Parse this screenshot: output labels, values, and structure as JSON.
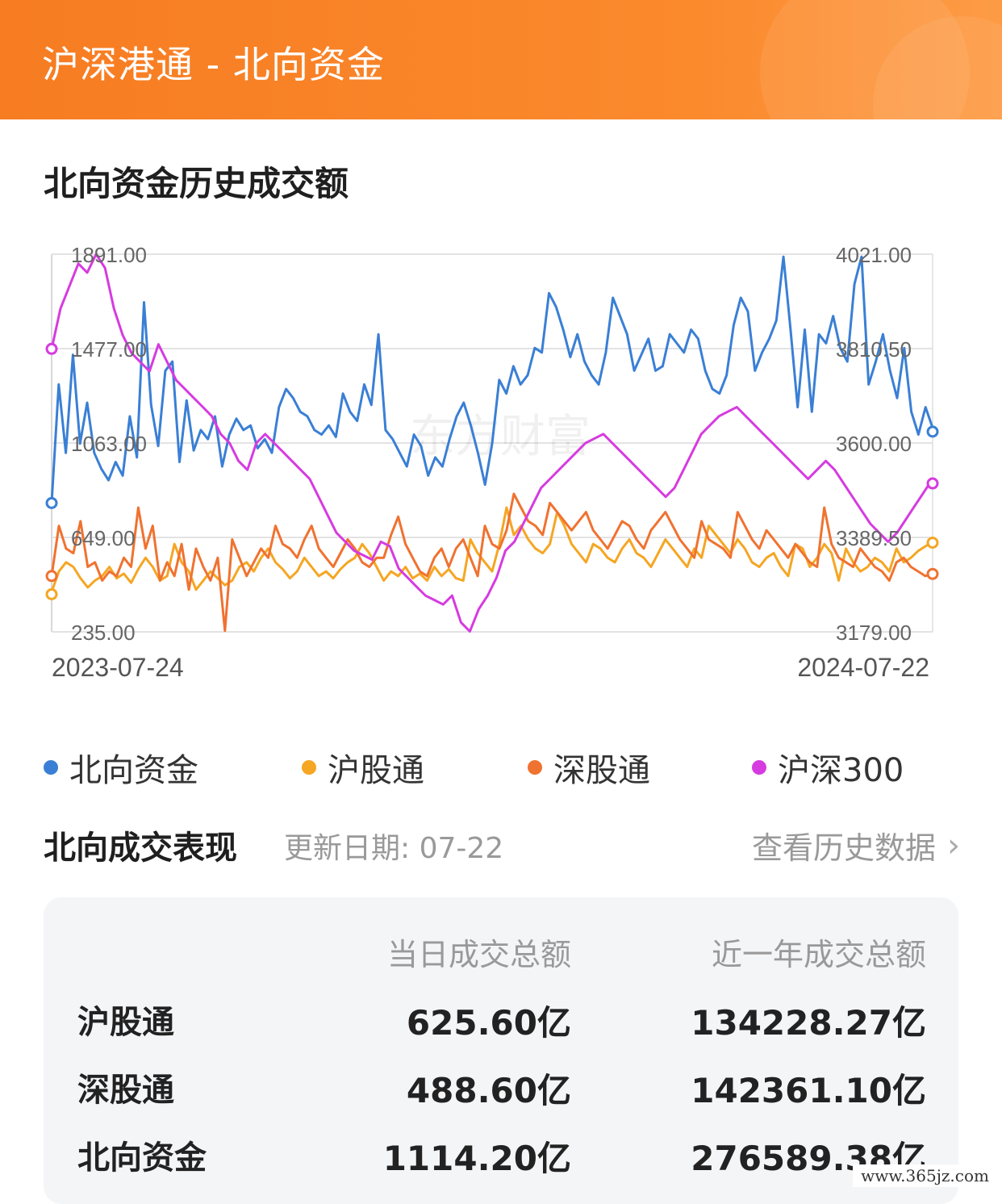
{
  "header": {
    "title": "沪深港通 - 北向资金"
  },
  "chart_section": {
    "title": "北向资金历史成交额"
  },
  "chart_data": {
    "type": "line",
    "title": "北向资金历史成交额",
    "x_start": "2023-07-24",
    "x_end": "2024-07-22",
    "left_axis": {
      "ticks": [
        "1891.00",
        "1477.00",
        "1063.00",
        "649.00",
        "235.00"
      ],
      "ylim": [
        235,
        1891
      ]
    },
    "right_axis": {
      "ticks": [
        "4021.00",
        "3810.50",
        "3600.00",
        "3389.50",
        "3179.00"
      ],
      "ylim": [
        3179,
        4021
      ]
    },
    "grid": true,
    "legend_position": "bottom",
    "watermark": "东方财富",
    "series": [
      {
        "name": "北向资金",
        "color": "#3a7fd5",
        "axis": "left",
        "values": [
          800,
          1320,
          1020,
          1450,
          1060,
          1240,
          1020,
          950,
          900,
          980,
          920,
          1180,
          1000,
          1680,
          1230,
          1050,
          1380,
          1420,
          980,
          1250,
          1030,
          1120,
          1080,
          1180,
          960,
          1100,
          1170,
          1120,
          1140,
          1040,
          1080,
          1020,
          1220,
          1300,
          1260,
          1200,
          1180,
          1120,
          1100,
          1140,
          1090,
          1280,
          1200,
          1160,
          1320,
          1230,
          1540,
          1120,
          1080,
          1020,
          960,
          1100,
          1050,
          920,
          1000,
          960,
          1080,
          1180,
          1240,
          1140,
          1020,
          880,
          1060,
          1340,
          1280,
          1400,
          1320,
          1360,
          1480,
          1460,
          1720,
          1660,
          1560,
          1440,
          1540,
          1420,
          1360,
          1320,
          1460,
          1700,
          1620,
          1540,
          1380,
          1450,
          1520,
          1380,
          1400,
          1540,
          1500,
          1460,
          1560,
          1520,
          1380,
          1300,
          1280,
          1360,
          1580,
          1700,
          1640,
          1380,
          1460,
          1520,
          1600,
          1880,
          1560,
          1220,
          1560,
          1200,
          1540,
          1500,
          1620,
          1480,
          1420,
          1760,
          1880,
          1320,
          1420,
          1540,
          1380,
          1260,
          1480,
          1200,
          1100,
          1220,
          1130
        ],
        "start_marker": 800,
        "end_marker": 1113
      },
      {
        "name": "沪股通",
        "color": "#f5a623",
        "axis": "left",
        "values": [
          410,
          500,
          540,
          520,
          470,
          430,
          460,
          480,
          520,
          470,
          490,
          450,
          510,
          560,
          520,
          460,
          480,
          620,
          540,
          500,
          420,
          460,
          500,
          470,
          440,
          460,
          520,
          540,
          500,
          560,
          600,
          540,
          510,
          470,
          500,
          560,
          520,
          480,
          500,
          470,
          510,
          540,
          560,
          620,
          580,
          520,
          460,
          500,
          480,
          520,
          470,
          490,
          460,
          520,
          480,
          510,
          470,
          460,
          640,
          580,
          540,
          500,
          620,
          780,
          660,
          700,
          640,
          600,
          580,
          620,
          760,
          700,
          620,
          580,
          540,
          620,
          600,
          560,
          540,
          600,
          640,
          580,
          560,
          520,
          580,
          640,
          600,
          560,
          520,
          600,
          560,
          700,
          660,
          620,
          580,
          640,
          600,
          540,
          520,
          560,
          580,
          520,
          480,
          620,
          600,
          520,
          560,
          620,
          580,
          460,
          600,
          540,
          500,
          520,
          560,
          540,
          500,
          600,
          540,
          560,
          590,
          610,
          630
        ],
        "start_marker": 400,
        "end_marker": 626
      },
      {
        "name": "深股通",
        "color": "#f07230",
        "axis": "left",
        "values": [
          480,
          700,
          600,
          580,
          720,
          520,
          540,
          460,
          500,
          480,
          560,
          520,
          780,
          600,
          700,
          460,
          540,
          480,
          620,
          420,
          600,
          520,
          460,
          560,
          240,
          640,
          560,
          480,
          540,
          600,
          560,
          700,
          620,
          600,
          560,
          640,
          700,
          600,
          560,
          520,
          580,
          640,
          600,
          540,
          520,
          560,
          560,
          660,
          740,
          620,
          560,
          500,
          480,
          560,
          600,
          520,
          600,
          640,
          560,
          480,
          700,
          620,
          600,
          680,
          840,
          780,
          720,
          700,
          660,
          800,
          760,
          720,
          680,
          720,
          760,
          680,
          640,
          600,
          660,
          720,
          700,
          640,
          600,
          680,
          720,
          760,
          700,
          640,
          600,
          560,
          720,
          640,
          620,
          600,
          560,
          760,
          700,
          640,
          600,
          680,
          640,
          600,
          560,
          620,
          580,
          540,
          520,
          780,
          620,
          560,
          540,
          520,
          600,
          560,
          520,
          500,
          460,
          540,
          560,
          520,
          500,
          480,
          490
        ],
        "start_marker": 480,
        "end_marker": 489
      },
      {
        "name": "沪深300",
        "color": "#d63be0",
        "axis": "right",
        "values": [
          3810,
          3900,
          3950,
          4000,
          3980,
          4021,
          3990,
          3900,
          3840,
          3800,
          3780,
          3760,
          3820,
          3780,
          3740,
          3720,
          3700,
          3680,
          3660,
          3620,
          3600,
          3560,
          3540,
          3600,
          3620,
          3600,
          3580,
          3560,
          3540,
          3520,
          3480,
          3440,
          3400,
          3380,
          3360,
          3350,
          3340,
          3380,
          3370,
          3320,
          3300,
          3280,
          3260,
          3250,
          3240,
          3260,
          3200,
          3180,
          3230,
          3260,
          3300,
          3360,
          3380,
          3420,
          3460,
          3500,
          3520,
          3540,
          3560,
          3580,
          3600,
          3610,
          3620,
          3600,
          3580,
          3560,
          3540,
          3520,
          3500,
          3480,
          3500,
          3540,
          3580,
          3620,
          3640,
          3660,
          3670,
          3680,
          3660,
          3640,
          3620,
          3600,
          3580,
          3560,
          3540,
          3520,
          3540,
          3560,
          3540,
          3510,
          3480,
          3450,
          3420,
          3400,
          3380,
          3400,
          3430,
          3460,
          3490,
          3520
        ],
        "start_marker": 3810,
        "end_marker": 3510
      }
    ]
  },
  "legend": [
    {
      "label": "北向资金",
      "color": "#3a7fd5"
    },
    {
      "label": "沪股通",
      "color": "#f5a623"
    },
    {
      "label": "深股通",
      "color": "#f07230"
    },
    {
      "label": "沪深300",
      "color": "#d63be0"
    }
  ],
  "performance": {
    "title": "北向成交表现",
    "update_date": "更新日期: 07-22",
    "history_link": "查看历史数据",
    "chevron_icon": "chevron-right-icon",
    "columns": {
      "day_total": "当日成交总额",
      "year_total": "近一年成交总额"
    },
    "rows": [
      {
        "name": "沪股通",
        "day": "625.60亿",
        "year": "134228.27亿"
      },
      {
        "name": "深股通",
        "day": "488.60亿",
        "year": "142361.10亿"
      },
      {
        "name": "北向资金",
        "day": "1114.20亿",
        "year": "276589.38亿"
      }
    ]
  },
  "site_watermark": "www.365jz.com"
}
